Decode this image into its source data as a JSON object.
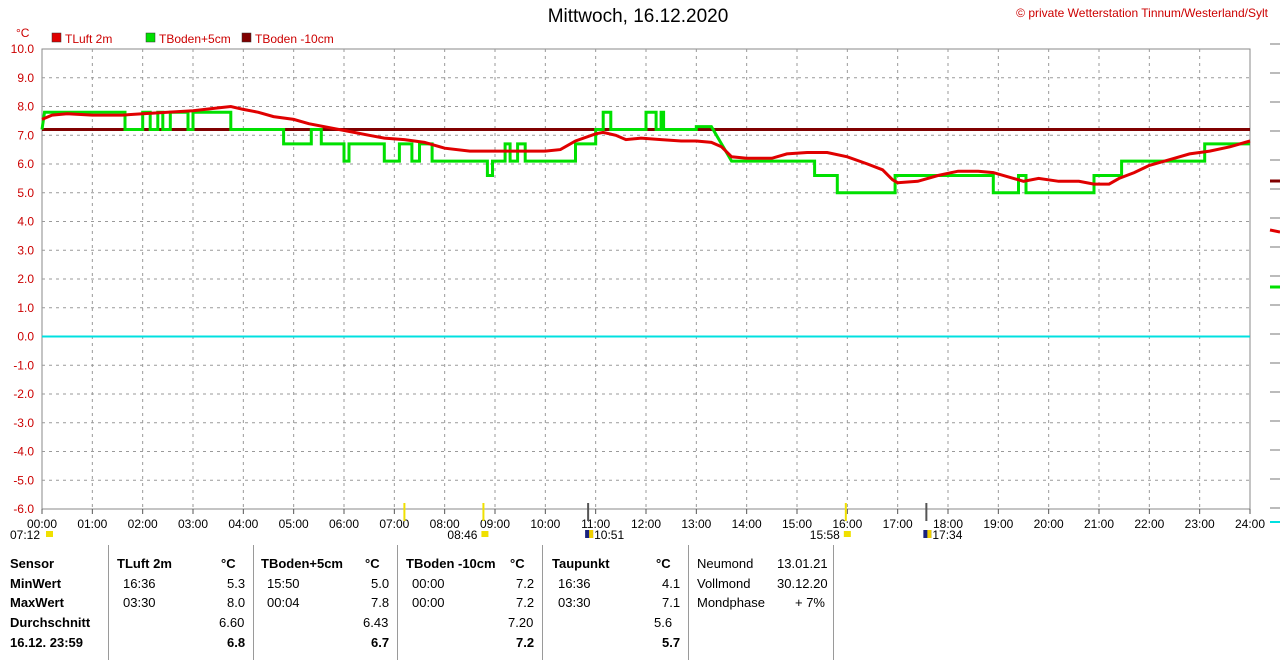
{
  "title": "Mittwoch, 16.12.2020",
  "copyright": "private Wetterstation Tinnum/Westerland/Sylt",
  "copyright_symbol": "©",
  "chart_data": {
    "type": "line",
    "ylabel": "°C",
    "ylim": [
      -6,
      10
    ],
    "y_ticks": [
      "10.0",
      "9.0",
      "8.0",
      "7.0",
      "6.0",
      "5.0",
      "4.0",
      "3.0",
      "2.0",
      "1.0",
      "0.0",
      "-1.0",
      "-2.0",
      "-3.0",
      "-4.0",
      "-5.0",
      "-6.0"
    ],
    "x_ticks": [
      "00:00",
      "01:00",
      "02:00",
      "03:00",
      "04:00",
      "05:00",
      "06:00",
      "07:00",
      "08:00",
      "09:00",
      "10:00",
      "11:00",
      "12:00",
      "13:00",
      "14:00",
      "15:00",
      "16:00",
      "17:00",
      "18:00",
      "19:00",
      "20:00",
      "21:00",
      "22:00",
      "23:00",
      "24:00"
    ],
    "xlim": [
      0,
      24
    ],
    "grid": true,
    "legend_position": "top-left",
    "series": [
      {
        "name": "TLuft 2m",
        "color": "#e00000",
        "points": [
          [
            0,
            7.55
          ],
          [
            0.2,
            7.7
          ],
          [
            0.5,
            7.75
          ],
          [
            1.0,
            7.7
          ],
          [
            1.6,
            7.7
          ],
          [
            2.0,
            7.75
          ],
          [
            2.5,
            7.8
          ],
          [
            3.0,
            7.85
          ],
          [
            3.5,
            7.95
          ],
          [
            3.75,
            8.0
          ],
          [
            4.0,
            7.9
          ],
          [
            4.3,
            7.8
          ],
          [
            4.6,
            7.65
          ],
          [
            5.0,
            7.55
          ],
          [
            5.3,
            7.4
          ],
          [
            5.6,
            7.3
          ],
          [
            5.9,
            7.2
          ],
          [
            6.2,
            7.1
          ],
          [
            6.5,
            7.0
          ],
          [
            6.8,
            6.9
          ],
          [
            7.2,
            6.85
          ],
          [
            7.6,
            6.75
          ],
          [
            8.0,
            6.55
          ],
          [
            8.5,
            6.45
          ],
          [
            9.0,
            6.45
          ],
          [
            9.5,
            6.45
          ],
          [
            10.0,
            6.45
          ],
          [
            10.3,
            6.5
          ],
          [
            10.6,
            6.8
          ],
          [
            11.0,
            7.05
          ],
          [
            11.15,
            7.1
          ],
          [
            11.4,
            7.0
          ],
          [
            11.6,
            6.85
          ],
          [
            11.9,
            6.9
          ],
          [
            12.3,
            6.85
          ],
          [
            12.7,
            6.8
          ],
          [
            13.0,
            6.8
          ],
          [
            13.3,
            6.75
          ],
          [
            13.5,
            6.6
          ],
          [
            13.7,
            6.25
          ],
          [
            14.0,
            6.2
          ],
          [
            14.5,
            6.2
          ],
          [
            14.8,
            6.35
          ],
          [
            15.2,
            6.4
          ],
          [
            15.6,
            6.4
          ],
          [
            16.0,
            6.25
          ],
          [
            16.4,
            6.0
          ],
          [
            16.7,
            5.8
          ],
          [
            16.9,
            5.45
          ],
          [
            17.0,
            5.35
          ],
          [
            17.4,
            5.4
          ],
          [
            17.8,
            5.6
          ],
          [
            18.2,
            5.75
          ],
          [
            18.6,
            5.75
          ],
          [
            18.9,
            5.7
          ],
          [
            19.2,
            5.55
          ],
          [
            19.5,
            5.4
          ],
          [
            19.8,
            5.5
          ],
          [
            20.2,
            5.4
          ],
          [
            20.6,
            5.4
          ],
          [
            20.9,
            5.3
          ],
          [
            21.2,
            5.3
          ],
          [
            21.4,
            5.5
          ],
          [
            21.7,
            5.7
          ],
          [
            22.0,
            5.95
          ],
          [
            22.4,
            6.15
          ],
          [
            22.8,
            6.35
          ],
          [
            23.2,
            6.45
          ],
          [
            23.6,
            6.6
          ],
          [
            24.0,
            6.8
          ]
        ]
      },
      {
        "name": "TBoden+5cm",
        "color": "#00e000",
        "points": [
          [
            0,
            7.2
          ],
          [
            0.05,
            7.8
          ],
          [
            1.65,
            7.8
          ],
          [
            1.65,
            7.2
          ],
          [
            2.0,
            7.2
          ],
          [
            2.0,
            7.8
          ],
          [
            2.15,
            7.8
          ],
          [
            2.15,
            7.2
          ],
          [
            2.3,
            7.2
          ],
          [
            2.3,
            7.8
          ],
          [
            2.4,
            7.8
          ],
          [
            2.4,
            7.2
          ],
          [
            2.55,
            7.2
          ],
          [
            2.55,
            7.8
          ],
          [
            2.9,
            7.8
          ],
          [
            2.9,
            7.2
          ],
          [
            3.0,
            7.2
          ],
          [
            3.0,
            7.8
          ],
          [
            3.75,
            7.8
          ],
          [
            3.75,
            7.2
          ],
          [
            4.8,
            7.2
          ],
          [
            4.8,
            6.7
          ],
          [
            5.35,
            6.7
          ],
          [
            5.35,
            7.2
          ],
          [
            5.55,
            7.2
          ],
          [
            5.55,
            6.7
          ],
          [
            6.0,
            6.7
          ],
          [
            6.0,
            6.1
          ],
          [
            6.1,
            6.1
          ],
          [
            6.1,
            6.7
          ],
          [
            6.8,
            6.7
          ],
          [
            6.8,
            6.1
          ],
          [
            7.1,
            6.1
          ],
          [
            7.1,
            6.7
          ],
          [
            7.35,
            6.7
          ],
          [
            7.35,
            6.1
          ],
          [
            7.5,
            6.1
          ],
          [
            7.5,
            6.7
          ],
          [
            7.75,
            6.7
          ],
          [
            7.75,
            6.1
          ],
          [
            8.85,
            6.1
          ],
          [
            8.85,
            5.6
          ],
          [
            8.95,
            5.6
          ],
          [
            8.95,
            6.1
          ],
          [
            9.2,
            6.1
          ],
          [
            9.2,
            6.7
          ],
          [
            9.3,
            6.7
          ],
          [
            9.3,
            6.1
          ],
          [
            9.45,
            6.1
          ],
          [
            9.45,
            6.7
          ],
          [
            9.6,
            6.7
          ],
          [
            9.6,
            6.1
          ],
          [
            10.6,
            6.1
          ],
          [
            10.6,
            6.7
          ],
          [
            11.0,
            6.7
          ],
          [
            11.0,
            7.2
          ],
          [
            11.15,
            7.2
          ],
          [
            11.15,
            7.8
          ],
          [
            11.3,
            7.8
          ],
          [
            11.3,
            7.2
          ],
          [
            12.0,
            7.2
          ],
          [
            12.0,
            7.8
          ],
          [
            12.2,
            7.8
          ],
          [
            12.2,
            7.2
          ],
          [
            12.3,
            7.2
          ],
          [
            12.3,
            7.8
          ],
          [
            12.35,
            7.8
          ],
          [
            12.35,
            7.2
          ],
          [
            13.0,
            7.2
          ],
          [
            13.0,
            7.3
          ],
          [
            13.3,
            7.3
          ],
          [
            13.5,
            6.7
          ],
          [
            13.7,
            6.1
          ],
          [
            15.35,
            6.1
          ],
          [
            15.35,
            5.6
          ],
          [
            15.8,
            5.6
          ],
          [
            15.8,
            5.0
          ],
          [
            16.95,
            5.0
          ],
          [
            16.95,
            5.6
          ],
          [
            18.9,
            5.6
          ],
          [
            18.9,
            5.0
          ],
          [
            19.4,
            5.0
          ],
          [
            19.4,
            5.6
          ],
          [
            19.55,
            5.6
          ],
          [
            19.55,
            5.0
          ],
          [
            20.9,
            5.0
          ],
          [
            20.9,
            5.6
          ],
          [
            21.45,
            5.6
          ],
          [
            21.45,
            6.1
          ],
          [
            23.1,
            6.1
          ],
          [
            23.1,
            6.7
          ],
          [
            24.0,
            6.7
          ]
        ]
      },
      {
        "name": "TBoden -10cm",
        "color": "#800000",
        "points": [
          [
            0,
            7.2
          ],
          [
            24,
            7.2
          ]
        ]
      }
    ],
    "reference_line": {
      "value": 0.0,
      "color": "#00e0e0"
    },
    "sun_moon_markers": [
      {
        "time": "07:12",
        "x": 7.2,
        "icon": "sunrise-icon"
      },
      {
        "time": "08:46",
        "x": 8.77,
        "icon": "sun-icon"
      },
      {
        "time": "10:51",
        "x": 10.85,
        "icon": "moon-icon"
      },
      {
        "time": "15:58",
        "x": 15.97,
        "icon": "sun-icon"
      },
      {
        "time": "17:34",
        "x": 17.57,
        "icon": "moon-icon"
      }
    ]
  },
  "stats": {
    "sensor_col": {
      "header": "Sensor",
      "rows": [
        "MinWert",
        "MaxWert",
        "Durchschnitt",
        "16.12. 23:59"
      ]
    },
    "groups": [
      {
        "name": "TLuft 2m",
        "unit": "°C",
        "min_time": "16:36",
        "min_val": "5.3",
        "max_time": "03:30",
        "max_val": "8.0",
        "avg": "6.60",
        "current": "6.8"
      },
      {
        "name": "TBoden+5cm",
        "unit": "°C",
        "min_time": "15:50",
        "min_val": "5.0",
        "max_time": "00:04",
        "max_val": "7.8",
        "avg": "6.43",
        "current": "6.7"
      },
      {
        "name": "TBoden -10cm",
        "unit": "°C",
        "min_time": "00:00",
        "min_val": "7.2",
        "max_time": "00:00",
        "max_val": "7.2",
        "avg": "7.20",
        "current": "7.2"
      },
      {
        "name": "Taupunkt",
        "unit": "°C",
        "min_time": "16:36",
        "min_val": "4.1",
        "max_time": "03:30",
        "max_val": "7.1",
        "avg": "5.6",
        "current": "5.7"
      }
    ],
    "moon": [
      {
        "label": "Neumond",
        "value": "13.01.21"
      },
      {
        "label": "Vollmond",
        "value": "30.12.20"
      },
      {
        "label": "Mondphase",
        "value": "+ 7%"
      }
    ]
  }
}
